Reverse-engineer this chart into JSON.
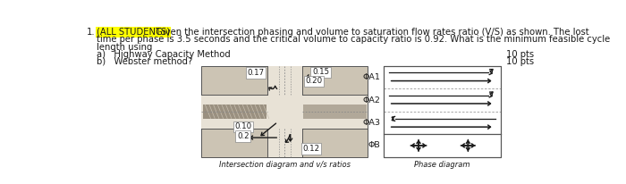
{
  "background_color": "#f5f0e8",
  "page_bg": "#ffffff",
  "text_color": "#1a1a1a",
  "number": "1.",
  "highlight_text": "(ALL STUDENTS)",
  "highlight_bg": "#ffff00",
  "line1_rest": " Given the intersection phasing and volume to saturation flow rates ratio (V/S) as shown. The lost",
  "line2": "time per phase is 3.5 seconds and the critical volume to capacity ratio is 0.92. What is the minimum feasible cycle",
  "line3": "length using",
  "item_a": "a)   Highway Capacity Method",
  "item_b": "b)   Webster method?",
  "pts_a": "10 pts",
  "pts_b": "10 pts",
  "diagram_caption": "Intersection diagram and v/s ratios",
  "phase_caption": "Phase diagram",
  "phase_labels": [
    "ΦA1",
    "ΦA2",
    "ΦA3",
    "ΦB"
  ],
  "vs_top_left": "0.17",
  "vs_top_right_upper": "0.15",
  "vs_top_right_lower": "0.20",
  "vs_bot_left_upper": "0.10",
  "vs_bot_left_lower": "0.2",
  "vs_bot_right": "0.12",
  "diagram_bg": "#ccc4b4",
  "road_bg": "#e8e2d6",
  "median_color": "#9a9080",
  "font_size_main": 7.2,
  "font_size_small": 6.2
}
